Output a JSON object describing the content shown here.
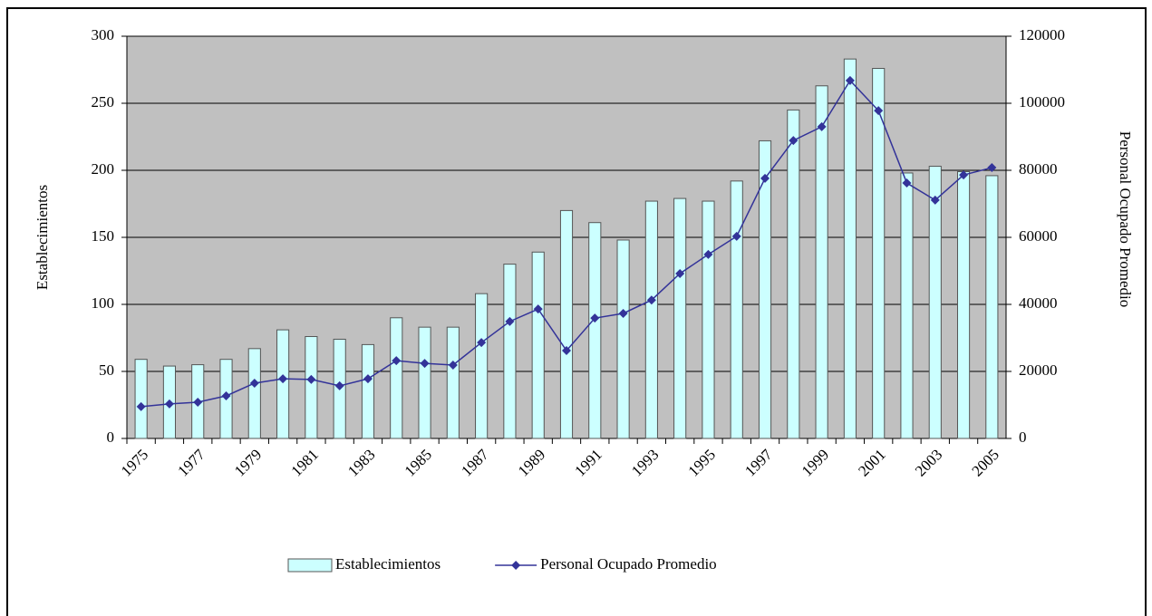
{
  "chart_data": {
    "type": "bar-line",
    "categories": [
      "1975",
      null,
      "1977",
      null,
      "1979",
      null,
      "1981",
      null,
      "1983",
      null,
      "1985",
      null,
      "1987",
      null,
      "1989",
      null,
      "1991",
      null,
      "1993",
      null,
      "1995",
      null,
      "1997",
      null,
      "1999",
      null,
      "2001",
      null,
      "2003",
      null,
      "2005"
    ],
    "y_label": "Establecimientos",
    "y2_label": "Personal Ocupado Promedio",
    "ylim": [
      0,
      300
    ],
    "yticks": [
      0,
      50,
      100,
      150,
      200,
      250,
      300
    ],
    "y2lim": [
      0,
      120000
    ],
    "y2ticks": [
      0,
      20000,
      40000,
      60000,
      80000,
      100000,
      120000
    ],
    "grid": true,
    "legend": "bottom",
    "series": [
      {
        "name": "Establecimientos",
        "type": "bar",
        "color": "#ccffff",
        "values": [
          59,
          54,
          55,
          59,
          67,
          81,
          76,
          74,
          70,
          90,
          83,
          83,
          108,
          130,
          139,
          170,
          161,
          148,
          177,
          179,
          177,
          192,
          222,
          245,
          263,
          283,
          276,
          198,
          203,
          199,
          196
        ]
      },
      {
        "name": "Personal Ocupado Promedio",
        "type": "line",
        "color": "#333399",
        "axis": "y2",
        "values": [
          9500,
          10300,
          10800,
          12700,
          16500,
          17800,
          17600,
          15700,
          17800,
          23200,
          22400,
          21900,
          28600,
          34900,
          38600,
          26200,
          35900,
          37300,
          41300,
          49200,
          54900,
          60300,
          77600,
          88900,
          93000,
          106800,
          97800,
          76200,
          71100,
          78600,
          80800
        ]
      }
    ]
  }
}
